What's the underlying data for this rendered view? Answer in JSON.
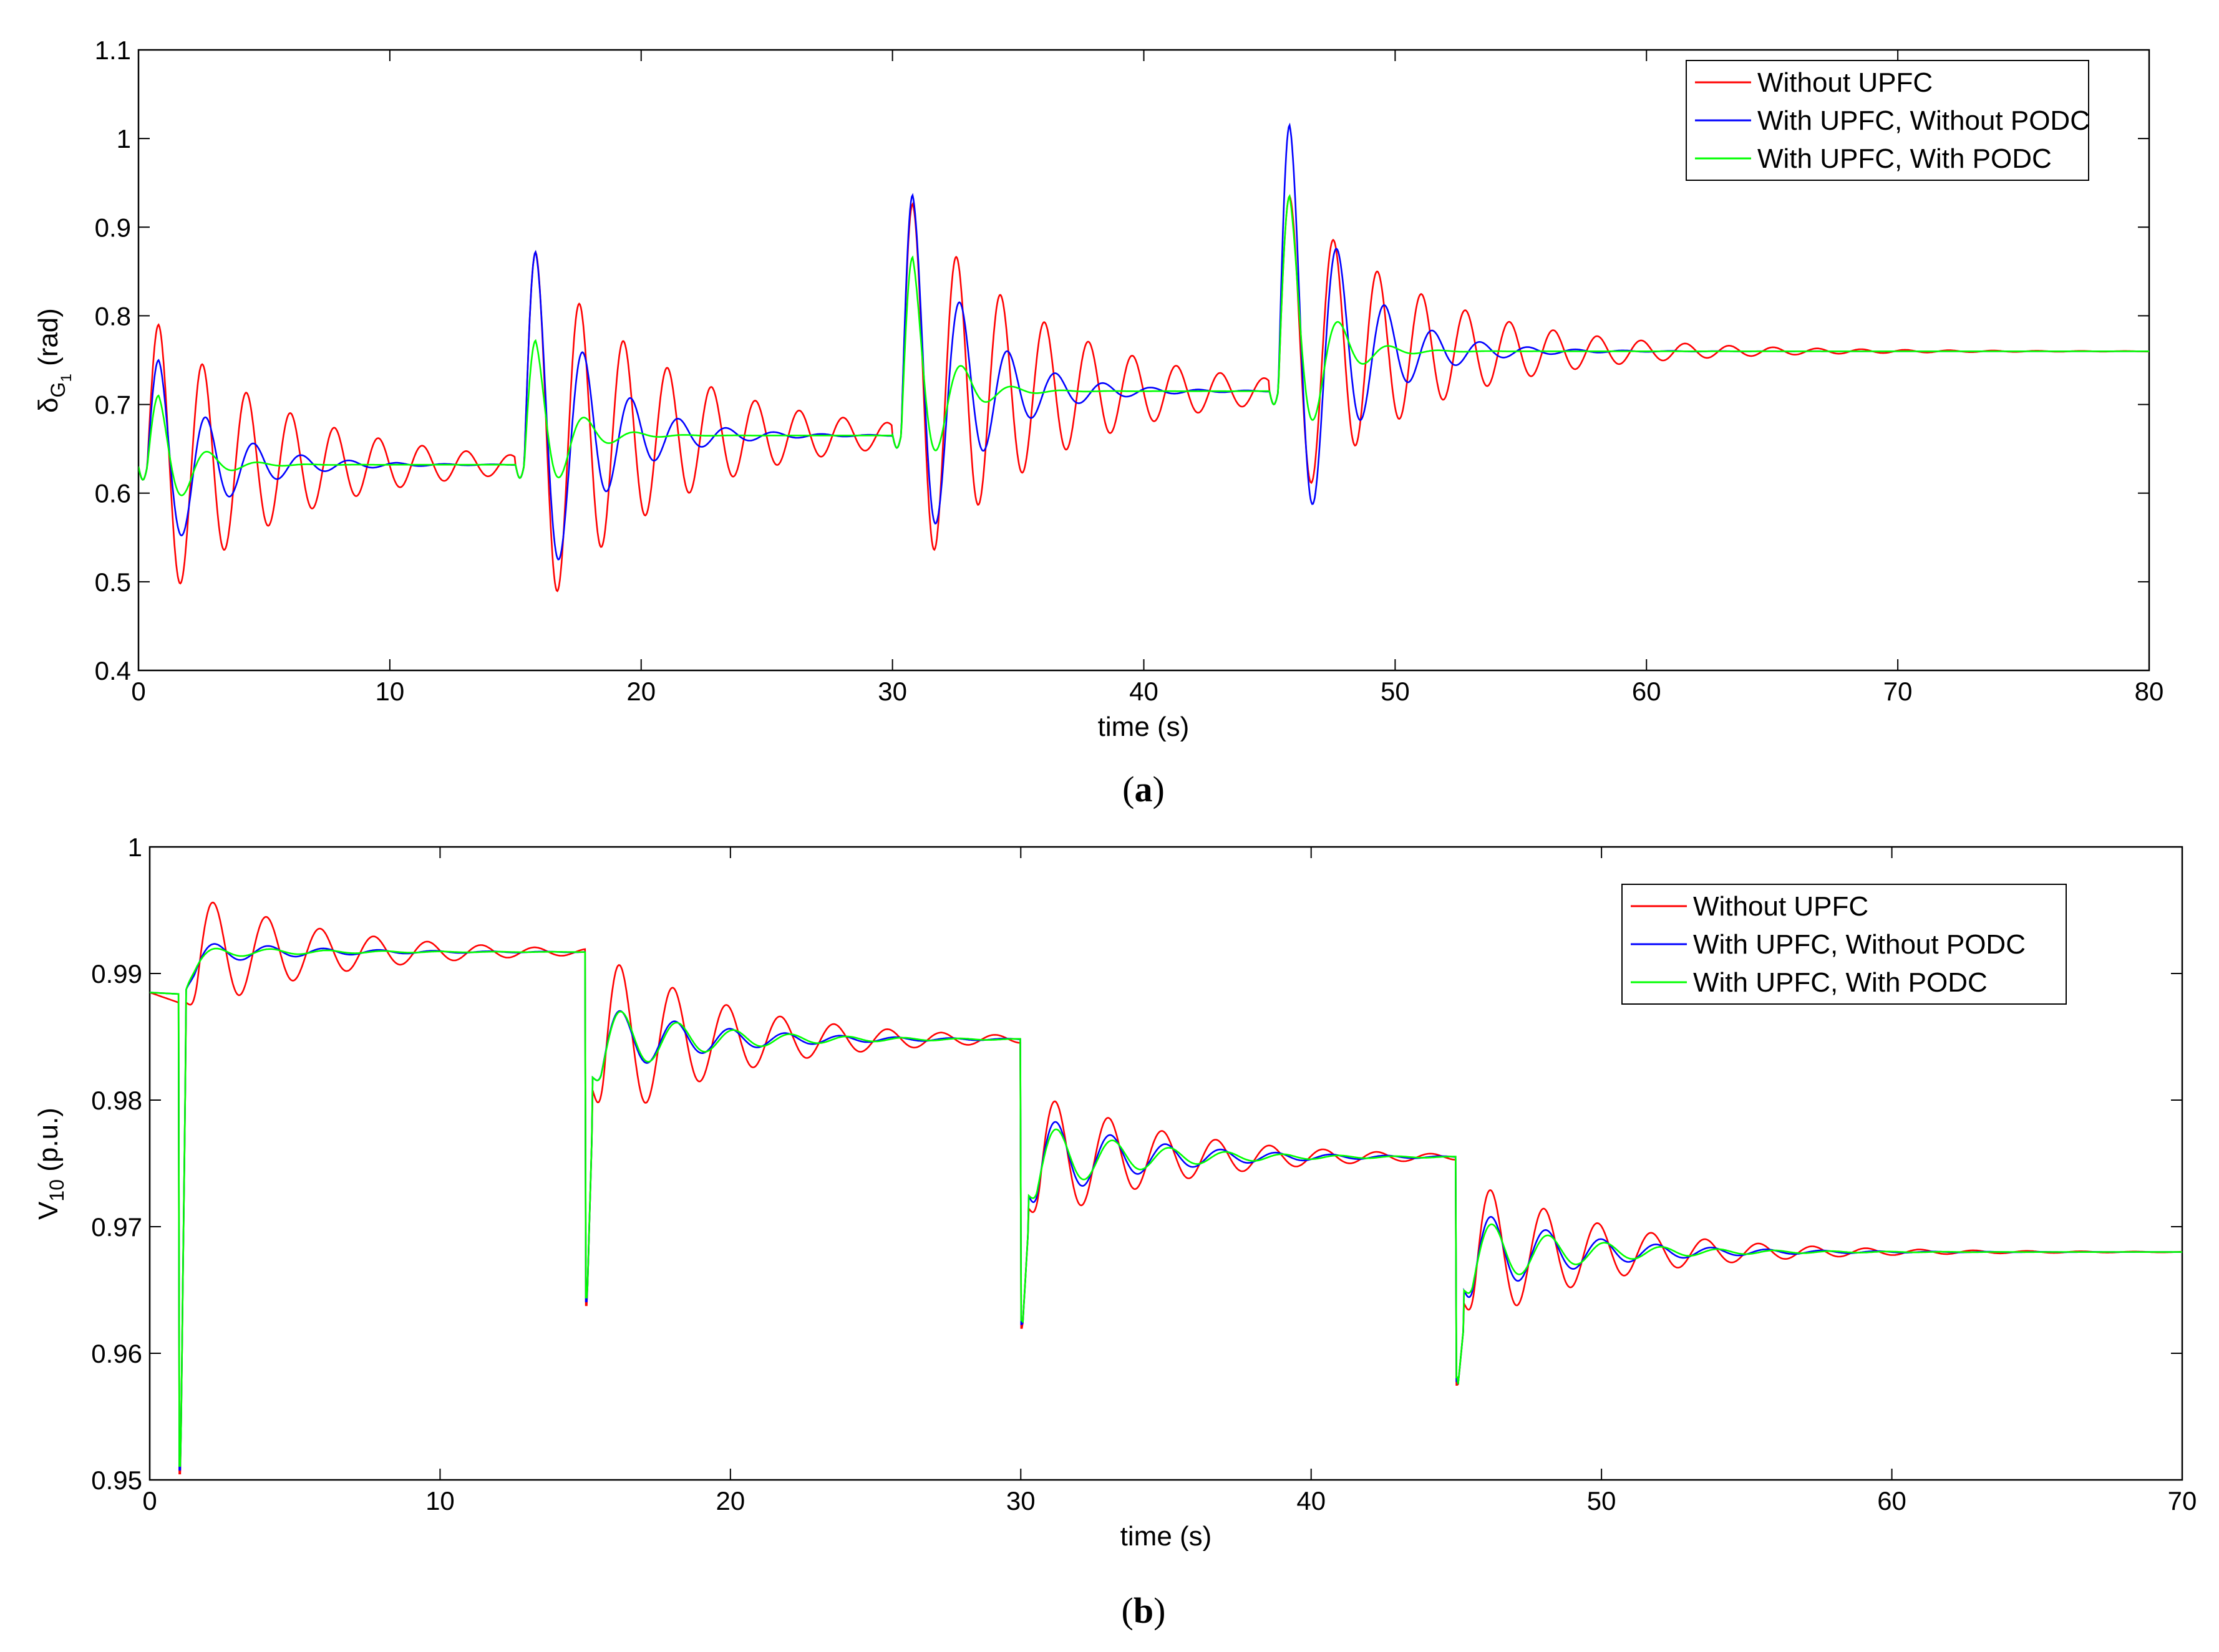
{
  "chart_data": [
    {
      "type": "line",
      "caption_letter": "a",
      "xlabel": "time (s)",
      "ylabel_main": "δ",
      "ylabel_sub": "G",
      "ylabel_subsub": "1",
      "ylabel_rest": " (rad)",
      "xlim": [
        0,
        80
      ],
      "ylim": [
        0.4,
        1.1
      ],
      "xticks": [
        0,
        10,
        20,
        30,
        40,
        50,
        60,
        70,
        80
      ],
      "yticks": [
        0.4,
        0.5,
        0.6,
        0.7,
        0.8,
        0.9,
        1,
        1.1
      ],
      "grid": false,
      "legend_position": "top-right",
      "events": [
        {
          "t": 0,
          "base": 0.63,
          "amp": [
            0.16,
            0.12,
            0.08
          ],
          "dip": [
            0.4,
            0.34,
            0.21
          ],
          "next_base": 0.632
        },
        {
          "t": 15,
          "base": 0.632,
          "amp": [
            0.24,
            0.24,
            0.14
          ],
          "dip": [
            0.25,
            0.2,
            0.1
          ],
          "next_base": 0.665
        },
        {
          "t": 30,
          "base": 0.666,
          "amp": [
            0.26,
            0.27,
            0.2
          ],
          "dip": [
            0.3,
            0.24,
            0.12
          ],
          "next_base": 0.715
        },
        {
          "t": 45,
          "base": 0.715,
          "amp": [
            0.22,
            0.3,
            0.22
          ],
          "dip": [
            0.3,
            0.22,
            0.12
          ],
          "next_base": 0.76
        }
      ],
      "series": [
        {
          "name": "Without UPFC",
          "color": "#ff0000",
          "period": 1.75,
          "decay": 0.19
        },
        {
          "name": "With UPFC, Without PODC",
          "color": "#0000ff",
          "period": 1.9,
          "decay": 0.42
        },
        {
          "name": "With UPFC, With PODC",
          "color": "#00ff00",
          "period": 2.0,
          "decay": 0.85
        }
      ]
    },
    {
      "type": "line",
      "caption_letter": "b",
      "xlabel": "time (s)",
      "ylabel_main": "V",
      "ylabel_sub": "10",
      "ylabel_rest": " (p.u.)",
      "xlim": [
        0,
        70
      ],
      "ylim": [
        0.95,
        1
      ],
      "xticks": [
        0,
        10,
        20,
        30,
        40,
        50,
        60,
        70
      ],
      "yticks": [
        0.95,
        0.96,
        0.97,
        0.98,
        0.99,
        1
      ],
      "grid": false,
      "legend_position": "top-right",
      "events": [
        {
          "t": 1,
          "base": 0.9885,
          "spike": 0.9505,
          "amp": [
            0.0085,
            0.0015,
            0.0008
          ],
          "next_base": 0.9917
        },
        {
          "t": 15,
          "base": 0.9917,
          "spike": 0.9638,
          "amp": [
            0.0125,
            0.0045,
            0.0045
          ],
          "next_base": 0.9848
        },
        {
          "t": 30,
          "base": 0.9848,
          "spike": 0.962,
          "amp": [
            0.0095,
            0.0055,
            0.0045
          ],
          "next_base": 0.9755
        },
        {
          "t": 45,
          "base": 0.9755,
          "spike": 0.9575,
          "amp": [
            0.0105,
            0.0055,
            0.0045
          ],
          "next_base": 0.968
        }
      ],
      "series": [
        {
          "name": "Without UPFC",
          "color": "#ff0000",
          "period": 1.85,
          "decay": 0.22
        },
        {
          "name": "With UPFC, Without PODC",
          "color": "#0000ff",
          "period": 1.9,
          "decay": 0.28
        },
        {
          "name": "With UPFC, With PODC",
          "color": "#00ff00",
          "period": 1.95,
          "decay": 0.3
        }
      ]
    }
  ]
}
